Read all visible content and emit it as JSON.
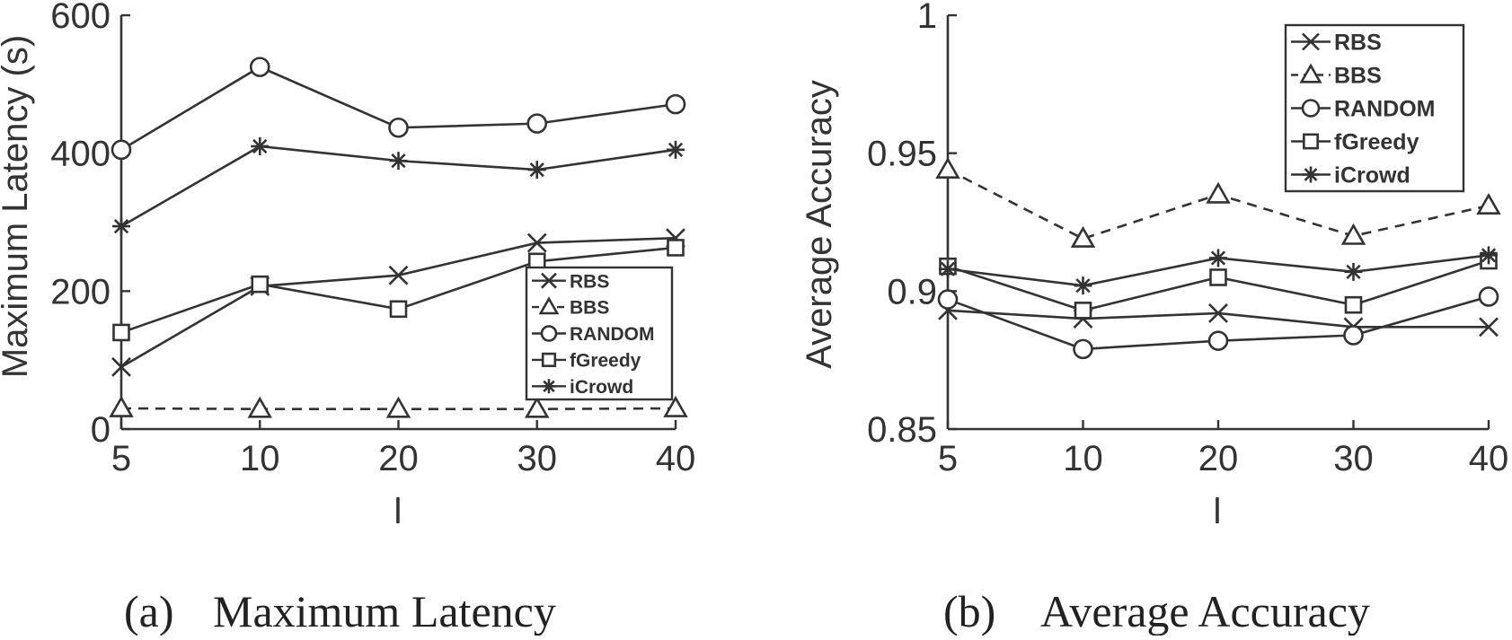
{
  "chart_data": [
    {
      "type": "line",
      "caption_tag": "(a)",
      "caption_title": "Maximum Latency",
      "xlabel": "l",
      "ylabel": "Maximum Latency (s)",
      "categories": [
        "5",
        "10",
        "20",
        "30",
        "40"
      ],
      "x_tick_labels": [
        "5",
        "10",
        "20",
        "30",
        "40"
      ],
      "ylim": [
        0,
        600
      ],
      "y_ticks": [
        0,
        200,
        400,
        600
      ],
      "y_tick_labels": [
        "0",
        "200",
        "400",
        "600"
      ],
      "legend_position": "lower-right",
      "grid": false,
      "series": [
        {
          "name": "RBS",
          "marker": "x",
          "dashed": false,
          "values": [
            90,
            207,
            223,
            270,
            277
          ]
        },
        {
          "name": "BBS",
          "marker": "triangle",
          "dashed": true,
          "values": [
            30,
            29,
            29,
            29,
            30
          ]
        },
        {
          "name": "RANDOM",
          "marker": "circle",
          "dashed": false,
          "values": [
            405,
            525,
            437,
            443,
            471
          ]
        },
        {
          "name": "fGreedy",
          "marker": "square",
          "dashed": false,
          "values": [
            140,
            210,
            174,
            243,
            263
          ]
        },
        {
          "name": "iCrowd",
          "marker": "star",
          "dashed": false,
          "values": [
            294,
            410,
            389,
            376,
            405
          ]
        }
      ]
    },
    {
      "type": "line",
      "caption_tag": "(b)",
      "caption_title": "Average Accuracy",
      "xlabel": "l",
      "ylabel": "Average Accuracy",
      "categories": [
        "5",
        "10",
        "20",
        "30",
        "40"
      ],
      "x_tick_labels": [
        "5",
        "10",
        "20",
        "30",
        "40"
      ],
      "ylim": [
        0.85,
        1
      ],
      "y_ticks": [
        0.85,
        0.9,
        0.95,
        1
      ],
      "y_tick_labels": [
        "0.85",
        "0.9",
        "0.95",
        "1"
      ],
      "legend_position": "top-right",
      "grid": false,
      "series": [
        {
          "name": "RBS",
          "marker": "x",
          "dashed": false,
          "values": [
            0.893,
            0.89,
            0.892,
            0.887,
            0.887
          ]
        },
        {
          "name": "BBS",
          "marker": "triangle",
          "dashed": true,
          "values": [
            0.944,
            0.919,
            0.935,
            0.92,
            0.931
          ]
        },
        {
          "name": "RANDOM",
          "marker": "circle",
          "dashed": false,
          "values": [
            0.897,
            0.879,
            0.882,
            0.884,
            0.898
          ]
        },
        {
          "name": "fGreedy",
          "marker": "square",
          "dashed": false,
          "values": [
            0.909,
            0.893,
            0.905,
            0.895,
            0.911
          ]
        },
        {
          "name": "iCrowd",
          "marker": "star",
          "dashed": false,
          "values": [
            0.908,
            0.902,
            0.912,
            0.907,
            0.913
          ]
        }
      ]
    }
  ]
}
